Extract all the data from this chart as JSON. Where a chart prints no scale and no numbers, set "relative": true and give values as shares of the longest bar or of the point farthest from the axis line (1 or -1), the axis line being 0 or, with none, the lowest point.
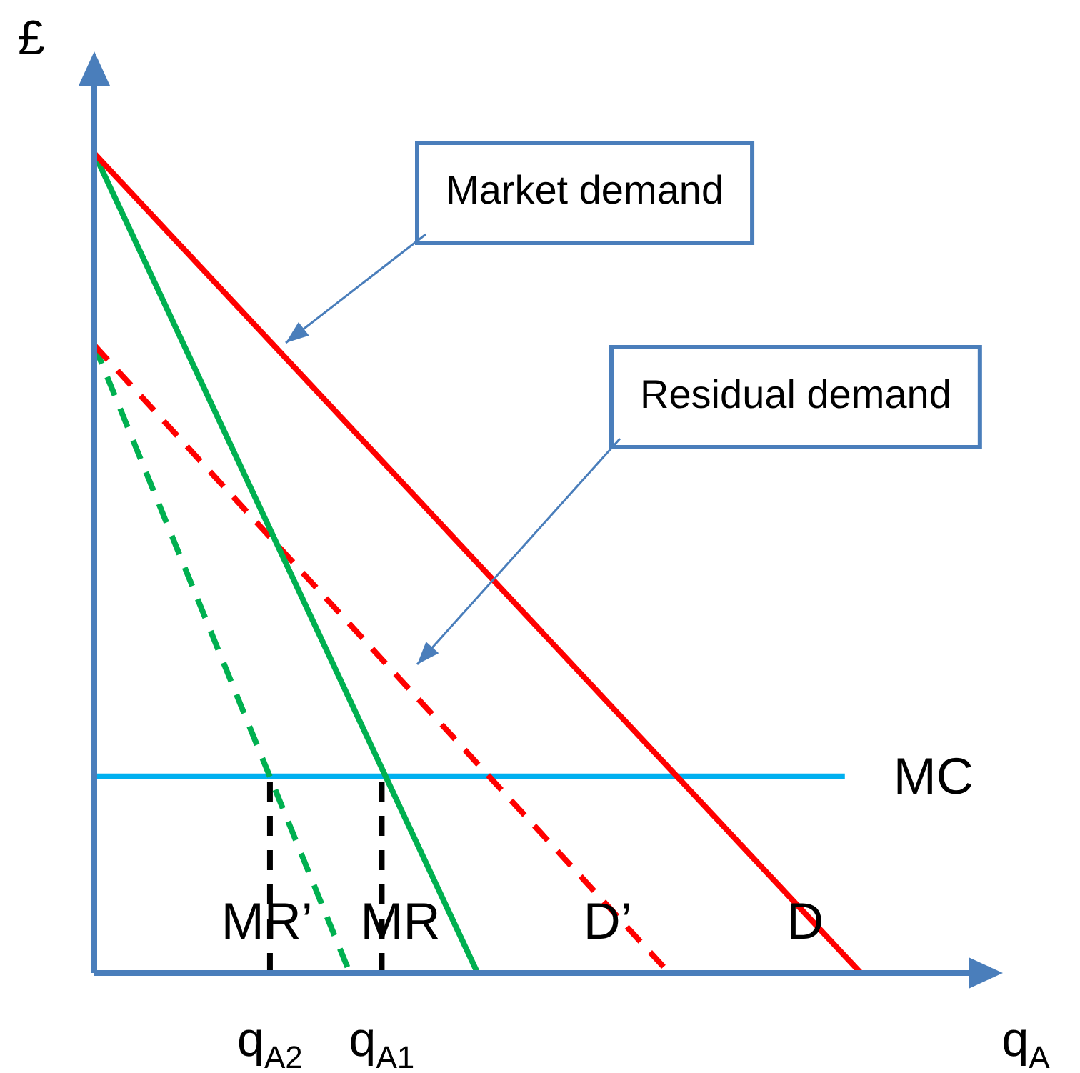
{
  "chart_data": {
    "type": "line",
    "relative": true,
    "ylabel": "£",
    "xlabel": "q$_{A}$",
    "grid": false,
    "legend": false,
    "marker": "none",
    "categories": [
      null,
      null,
      null,
      null,
      null,
      null,
      null,
      null,
      null,
      null,
      null,
      "q$_{A2}$",
      null,
      null,
      null,
      null,
      null,
      null,
      "q$_{A1}$",
      null,
      null,
      null,
      null,
      null,
      null,
      null,
      null,
      null,
      null,
      null,
      null,
      null,
      null,
      null,
      null,
      null,
      null,
      null,
      null,
      null,
      null,
      null,
      null,
      null,
      null,
      null,
      null,
      null,
      null,
      null,
      null,
      null,
      null,
      null,
      null,
      null,
      null
    ],
    "series": [
      {
        "name": "D",
        "color": "#ff0000",
        "line_style": "solid",
        "values": [
          1,
          null,
          null,
          null,
          null,
          null,
          null,
          null,
          null,
          null,
          null,
          null,
          null,
          null,
          null,
          null,
          null,
          null,
          null,
          null,
          null,
          null,
          null,
          null,
          null,
          null,
          null,
          null,
          null,
          null,
          null,
          null,
          null,
          null,
          null,
          null,
          null,
          null,
          null,
          null,
          null,
          null,
          null,
          null,
          null,
          null,
          null,
          null,
          0,
          null,
          null,
          null,
          null,
          null,
          null,
          null,
          null
        ]
      },
      {
        "name": "MR",
        "color": "#00b050",
        "line_style": "solid",
        "values": [
          1,
          null,
          null,
          null,
          null,
          null,
          null,
          null,
          null,
          null,
          null,
          null,
          null,
          null,
          null,
          null,
          null,
          null,
          null,
          null,
          null,
          null,
          null,
          null,
          0,
          null,
          null,
          null,
          null,
          null,
          null,
          null,
          null,
          null,
          null,
          null,
          null,
          null,
          null,
          null,
          null,
          null,
          null,
          null,
          null,
          null,
          null,
          null,
          null,
          null,
          null,
          null,
          null,
          null,
          null,
          null,
          null
        ]
      },
      {
        "name": "D’",
        "color": "#ff0000",
        "line_style": "dashed",
        "values": [
          0.766,
          null,
          null,
          null,
          null,
          null,
          null,
          null,
          null,
          null,
          null,
          null,
          null,
          null,
          null,
          null,
          null,
          null,
          null,
          null,
          null,
          null,
          null,
          null,
          null,
          null,
          null,
          null,
          null,
          null,
          null,
          null,
          null,
          null,
          null,
          null,
          0,
          null,
          null,
          null,
          null,
          null,
          null,
          null,
          null,
          null,
          null,
          null,
          null,
          null,
          null,
          null,
          null,
          null,
          null,
          null,
          null
        ]
      },
      {
        "name": "MR’",
        "color": "#00b050",
        "line_style": "dashed",
        "values": [
          0.766,
          null,
          null,
          null,
          null,
          null,
          null,
          null,
          null,
          null,
          null,
          null,
          null,
          null,
          null,
          null,
          0,
          null,
          null,
          null,
          null,
          null,
          null,
          null,
          null,
          null,
          null,
          null,
          null,
          null,
          null,
          null,
          null,
          null,
          null,
          null,
          null,
          null,
          null,
          null,
          null,
          null,
          null,
          null,
          null,
          null,
          null,
          null,
          null,
          null,
          null,
          null,
          null,
          null,
          null,
          null,
          null
        ]
      },
      {
        "name": "MC",
        "color": "#00b0f0",
        "line_style": "solid",
        "values": [
          0.24,
          null,
          null,
          null,
          null,
          null,
          null,
          null,
          null,
          null,
          null,
          null,
          null,
          null,
          null,
          null,
          null,
          null,
          null,
          null,
          null,
          null,
          null,
          null,
          null,
          null,
          null,
          null,
          null,
          null,
          null,
          null,
          null,
          null,
          null,
          null,
          null,
          null,
          null,
          null,
          null,
          null,
          null,
          null,
          null,
          null,
          null,
          0.24,
          null,
          null,
          null,
          null,
          null,
          null,
          null,
          null,
          null
        ]
      }
    ],
    "ref_lines": [
      {
        "axis": "x",
        "value": "q$_{A2}$",
        "color": "#000000",
        "line_style": "dashed"
      },
      {
        "axis": "x",
        "value": "q$_{A1}$",
        "color": "#000000",
        "line_style": "dashed"
      }
    ],
    "annotations": [
      "Market demand",
      "Residual demand"
    ]
  }
}
